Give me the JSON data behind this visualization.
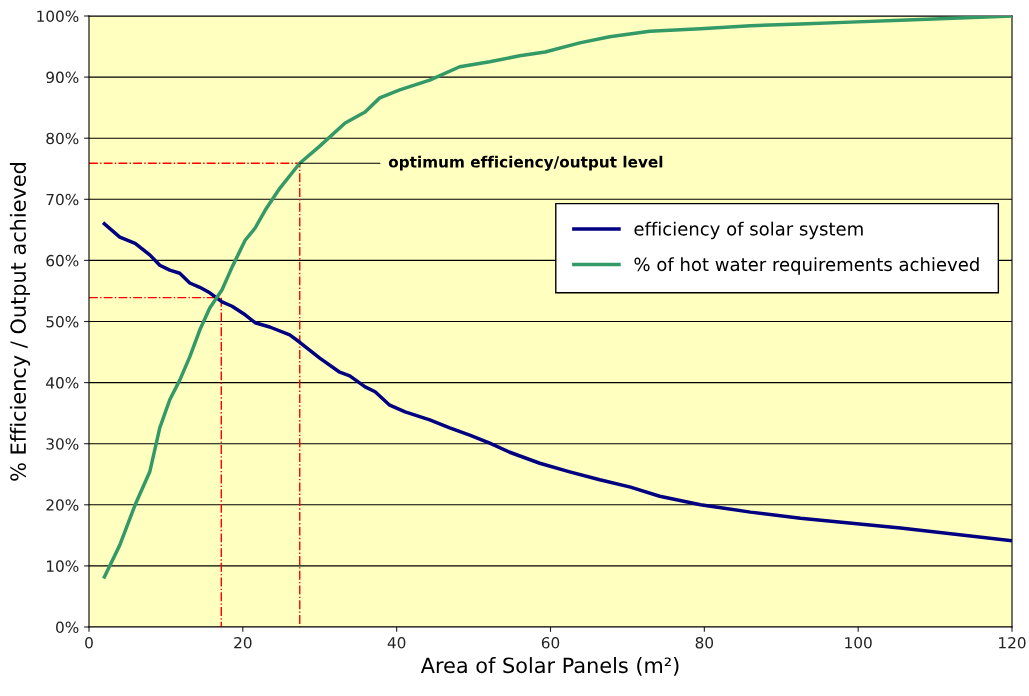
{
  "chart_data": {
    "type": "line",
    "xlabel": "Area of Solar Panels (m²)",
    "ylabel": "% Efficiency / Output achieved",
    "xlim": [
      0,
      120
    ],
    "xticks": [
      0,
      20,
      40,
      60,
      80,
      100,
      120
    ],
    "ylim": [
      0,
      100
    ],
    "yticks": [
      {
        "value": 0,
        "label": "0%"
      },
      {
        "value": 10,
        "label": "10%"
      },
      {
        "value": 20,
        "label": "20%"
      },
      {
        "value": 30,
        "label": "30%"
      },
      {
        "value": 40,
        "label": "40%"
      },
      {
        "value": 50,
        "label": "50%"
      },
      {
        "value": 60,
        "label": "60%"
      },
      {
        "value": 70,
        "label": "70%"
      },
      {
        "value": 80,
        "label": "80%"
      },
      {
        "value": 90,
        "label": "90%"
      },
      {
        "value": 100,
        "label": "100%"
      }
    ],
    "grid": "y",
    "legend": "right",
    "marker": "none",
    "line_style": "solid",
    "series": [
      {
        "name": "efficiency of solar system",
        "color": "#000080",
        "x": [
          2,
          4,
          6,
          7.9,
          9.2,
          10.5,
          11.8,
          13.1,
          14.4,
          15.7,
          17.3,
          18.6,
          20.3,
          21.6,
          23.5,
          26.1,
          27.4,
          30,
          32.6,
          33.9,
          35.9,
          37.2,
          39.1,
          41.1,
          44.3,
          46.9,
          49.5,
          52.1,
          54.7,
          58.6,
          62.5,
          66.4,
          70.4,
          74.2,
          79.5,
          86,
          92.5,
          105.5,
          120
        ],
        "values": [
          66,
          63.8,
          62.8,
          60.9,
          59.2,
          58.4,
          57.9,
          56.3,
          55.6,
          54.7,
          53.2,
          52.5,
          51.1,
          49.8,
          49.1,
          47.8,
          46.6,
          44,
          41.7,
          41.1,
          39.3,
          38.5,
          36.3,
          35.2,
          33.9,
          32.6,
          31.4,
          30.1,
          28.6,
          26.8,
          25.4,
          24.1,
          22.9,
          21.4,
          20,
          18.8,
          17.8,
          16.2,
          14.1
        ]
      },
      {
        "name": "% of hot water requirements achieved",
        "color": "#339966",
        "x": [
          2,
          4,
          6,
          7.9,
          9.2,
          10.5,
          11.8,
          13.1,
          14.4,
          15.7,
          17.3,
          18.6,
          20.3,
          21.6,
          22.9,
          24.8,
          27.4,
          30,
          33.3,
          35.9,
          37.8,
          40.4,
          44.3,
          48.2,
          52.1,
          56,
          59.3,
          63.8,
          67.7,
          72.9,
          79.5,
          86,
          92.5,
          99,
          105.5,
          120
        ],
        "values": [
          8.2,
          13.4,
          20,
          25.4,
          32.6,
          37.2,
          40.4,
          44.2,
          48.6,
          52.2,
          55.2,
          58.9,
          63.3,
          65.3,
          68.2,
          71.8,
          75.9,
          78.7,
          82.5,
          84.3,
          86.6,
          87.9,
          89.5,
          91.7,
          92.5,
          93.5,
          94.1,
          95.6,
          96.6,
          97.5,
          97.9,
          98.4,
          98.7,
          99,
          99.3,
          100
        ]
      },
      {
        "type": "line",
        "color": "#ff0000",
        "line_style": "dashdot",
        "x": [
          0,
          27.4,
          27.4
        ],
        "values": [
          75.9,
          75.9,
          0
        ]
      },
      {
        "type": "line",
        "color": "#ff0000",
        "line_style": "dashdot",
        "x": [
          0,
          17.2,
          17.2
        ],
        "values": [
          53.9,
          53.9,
          0
        ]
      }
    ],
    "annotations": [
      {
        "text": "optimum efficiency/output level",
        "x": 27.4,
        "y": 75.9
      }
    ]
  }
}
